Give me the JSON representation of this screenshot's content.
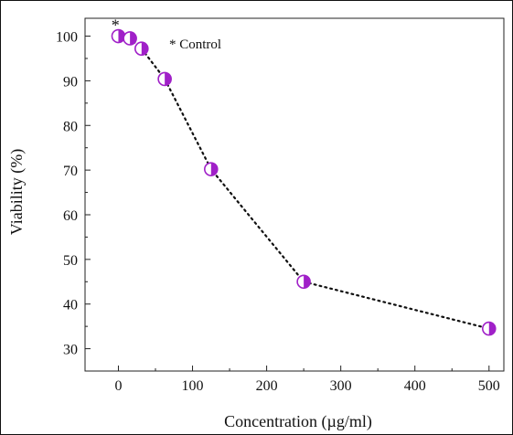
{
  "chart_data": {
    "type": "scatter",
    "title": "",
    "xlabel": "Concentration (µg/ml)",
    "ylabel": "Viability (%)",
    "xlim": [
      -45,
      520
    ],
    "ylim": [
      25,
      104
    ],
    "x_ticks": [
      0,
      100,
      200,
      300,
      400,
      500
    ],
    "y_ticks": [
      30,
      40,
      50,
      60,
      70,
      80,
      90,
      100
    ],
    "x_tick_labels": [
      "0",
      "100",
      "200",
      "300",
      "400",
      "500"
    ],
    "y_tick_labels": [
      "30",
      "40",
      "50",
      "60",
      "70",
      "80",
      "90",
      "100"
    ],
    "grid": false,
    "legend_position": "top-center",
    "series": [
      {
        "marker": "half-filled-circle",
        "color": "#a020c8",
        "line_style": "dotted",
        "x": [
          0,
          15.6,
          31.25,
          62.5,
          125,
          250,
          500
        ],
        "y": [
          100,
          99.5,
          97.2,
          90.4,
          70.2,
          45,
          34.5
        ]
      }
    ],
    "annotations": [
      {
        "text": "*",
        "x": -4,
        "y": 102.7
      },
      {
        "text": "* Control"
      }
    ]
  }
}
